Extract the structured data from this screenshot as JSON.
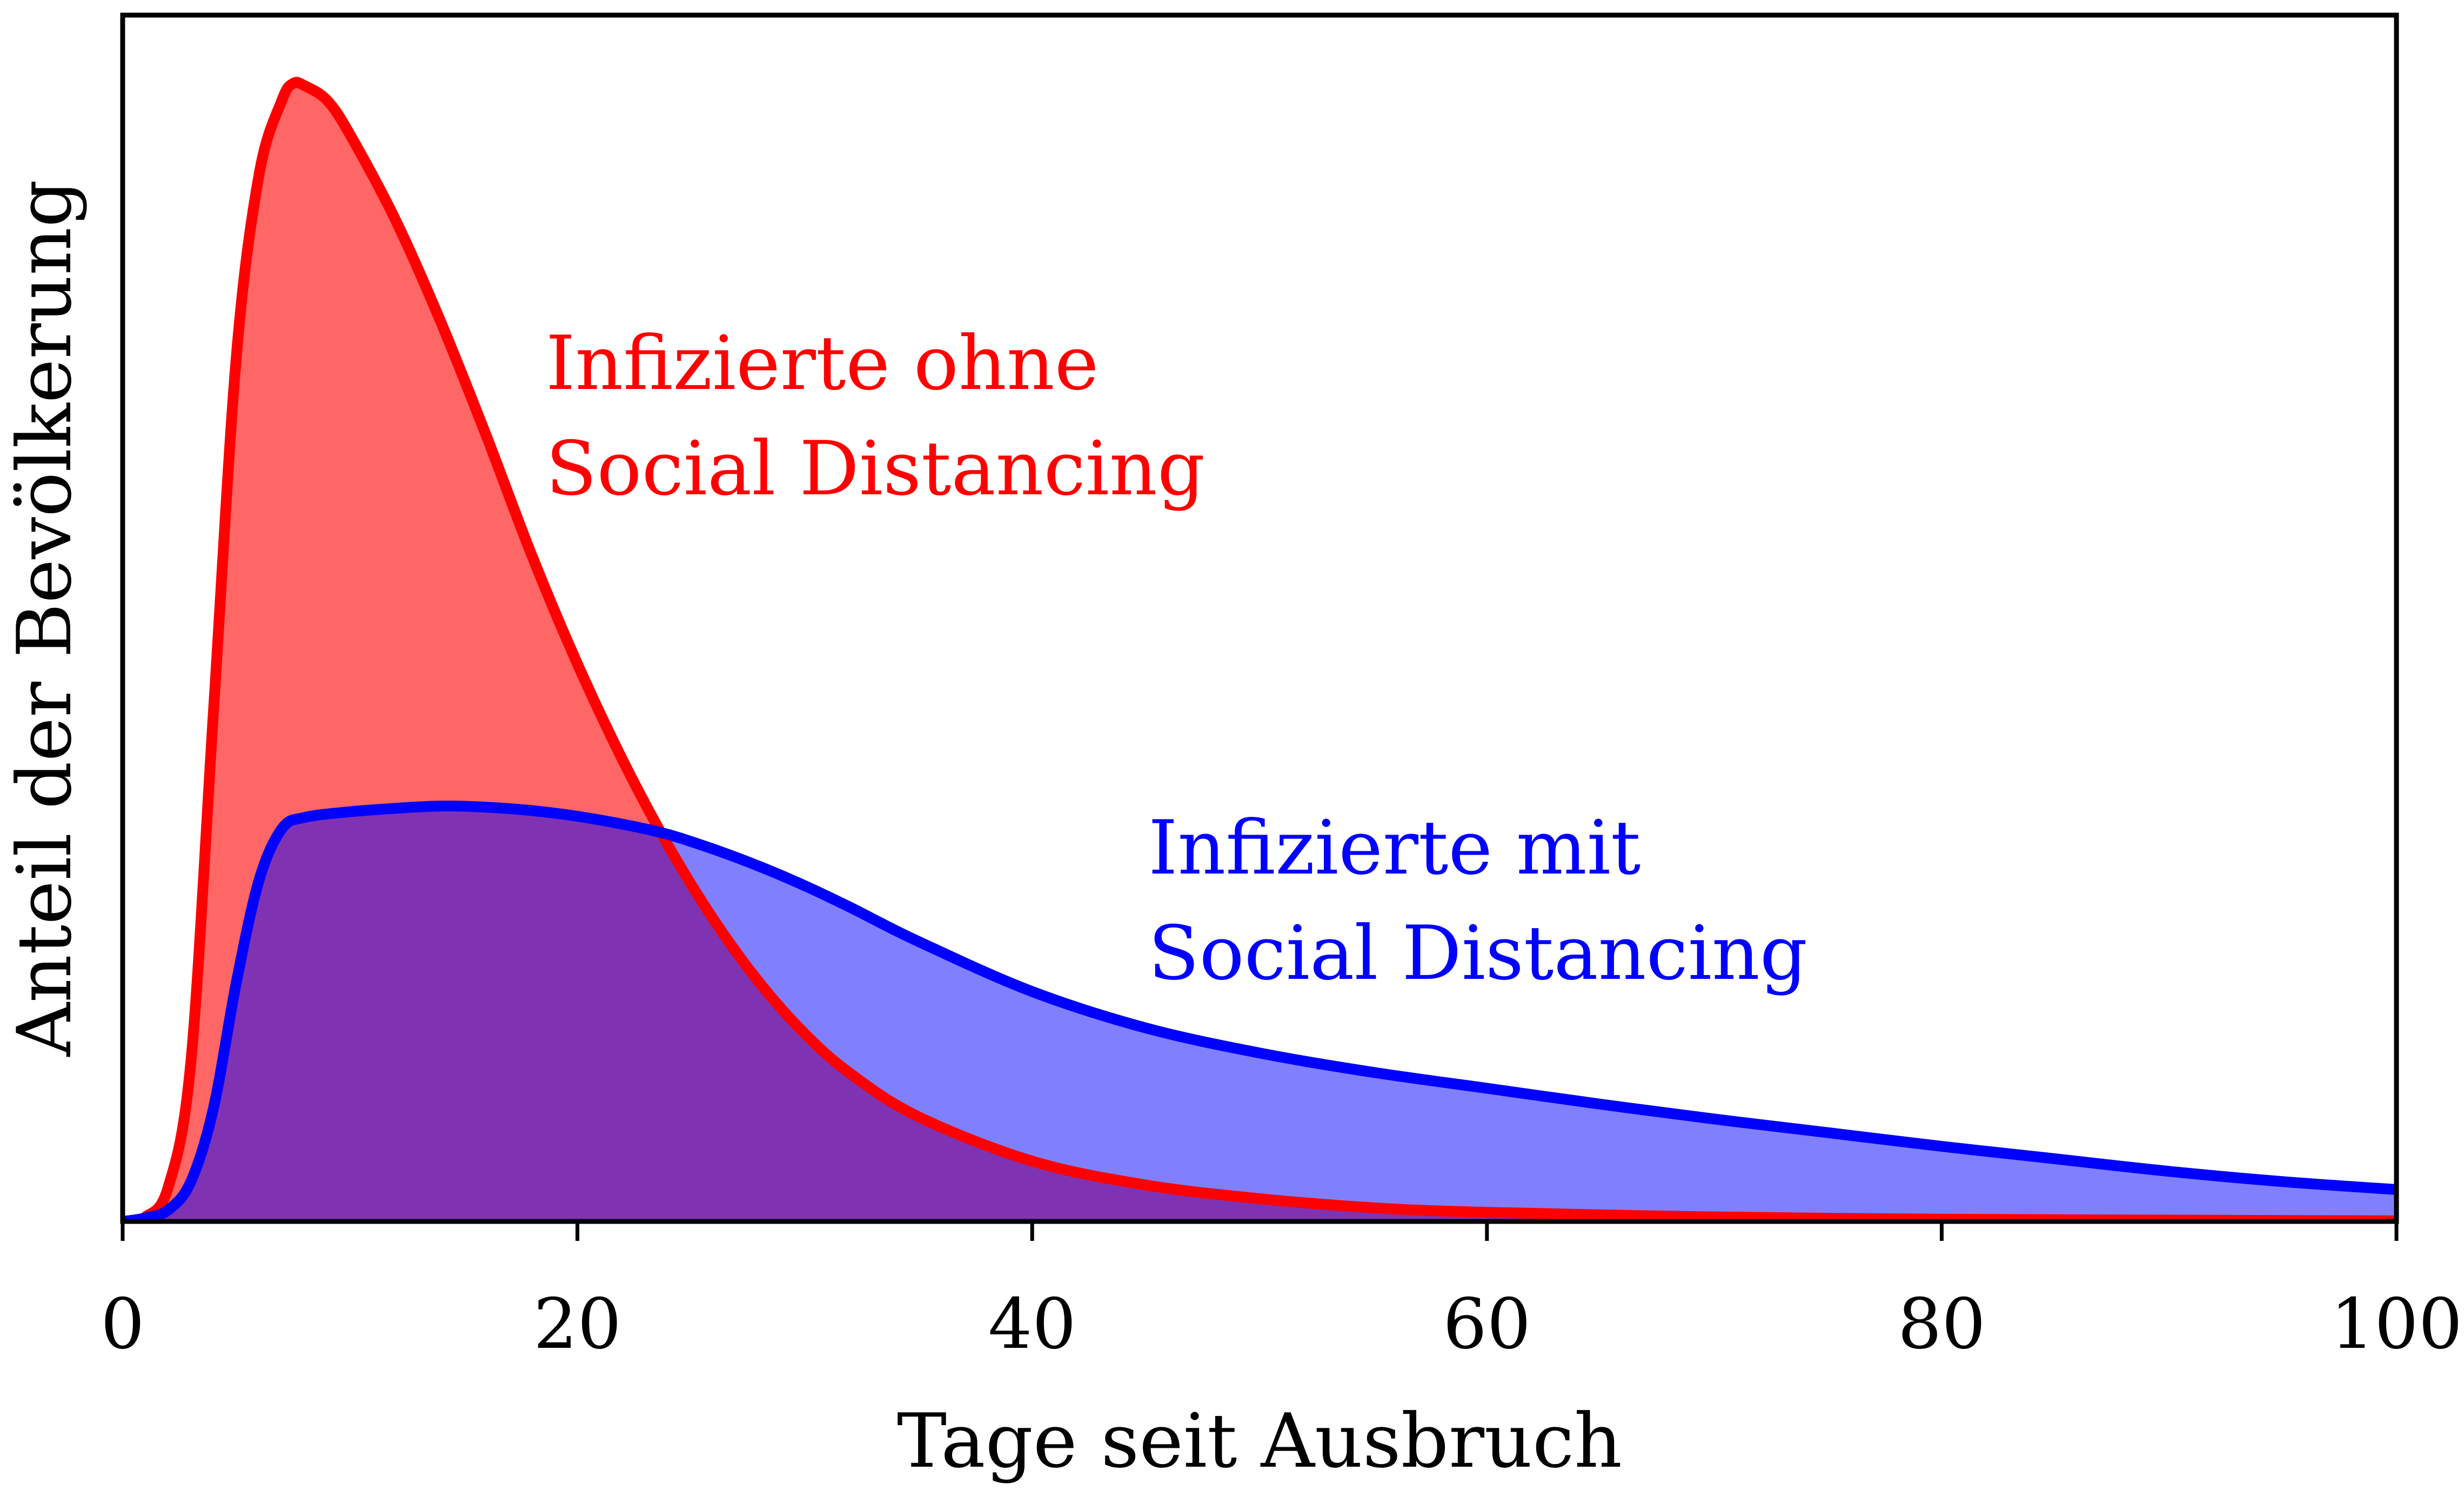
{
  "chart_data": {
    "type": "area",
    "xlabel": "Tage seit Ausbruch",
    "ylabel": "Anteil der Bevölkerung",
    "xlim": [
      0,
      100
    ],
    "ylim": [
      0,
      1.06
    ],
    "x_ticks": [
      0,
      20,
      40,
      60,
      80,
      100
    ],
    "y_ticks": [],
    "grid": false,
    "legend": "none",
    "series": [
      {
        "id": "without",
        "line_color": "#ff0000",
        "fill_color": "#ff6666",
        "points": [
          [
            0,
            0.0
          ],
          [
            1,
            0.004
          ],
          [
            2,
            0.03
          ],
          [
            3,
            0.14
          ],
          [
            4,
            0.45
          ],
          [
            5,
            0.76
          ],
          [
            6,
            0.92
          ],
          [
            7,
            0.985
          ],
          [
            7.5,
            1.0
          ],
          [
            8,
            0.998
          ],
          [
            9,
            0.985
          ],
          [
            10,
            0.955
          ],
          [
            12,
            0.88
          ],
          [
            14,
            0.79
          ],
          [
            16,
            0.69
          ],
          [
            18,
            0.585
          ],
          [
            20,
            0.49
          ],
          [
            22,
            0.405
          ],
          [
            24,
            0.33
          ],
          [
            26,
            0.265
          ],
          [
            28,
            0.21
          ],
          [
            30,
            0.165
          ],
          [
            32,
            0.13
          ],
          [
            35,
            0.092
          ],
          [
            40,
            0.053
          ],
          [
            45,
            0.032
          ],
          [
            50,
            0.02
          ],
          [
            55,
            0.012
          ],
          [
            60,
            0.008
          ],
          [
            70,
            0.004
          ],
          [
            80,
            0.002
          ],
          [
            90,
            0.0012
          ],
          [
            100,
            0.0005
          ]
        ]
      },
      {
        "id": "with",
        "line_color": "#0000ff",
        "fill_color": "#8080ff",
        "points": [
          [
            0,
            0.0
          ],
          [
            1,
            0.003
          ],
          [
            2,
            0.01
          ],
          [
            3,
            0.035
          ],
          [
            4,
            0.1
          ],
          [
            5,
            0.21
          ],
          [
            6,
            0.3
          ],
          [
            7,
            0.345
          ],
          [
            8,
            0.355
          ],
          [
            10,
            0.36
          ],
          [
            12,
            0.363
          ],
          [
            14,
            0.365
          ],
          [
            16,
            0.364
          ],
          [
            18,
            0.361
          ],
          [
            20,
            0.356
          ],
          [
            22,
            0.349
          ],
          [
            24,
            0.34
          ],
          [
            26,
            0.327
          ],
          [
            28,
            0.312
          ],
          [
            30,
            0.295
          ],
          [
            32,
            0.276
          ],
          [
            35,
            0.246
          ],
          [
            40,
            0.202
          ],
          [
            45,
            0.17
          ],
          [
            50,
            0.148
          ],
          [
            55,
            0.131
          ],
          [
            60,
            0.117
          ],
          [
            65,
            0.103
          ],
          [
            70,
            0.09
          ],
          [
            75,
            0.078
          ],
          [
            80,
            0.066
          ],
          [
            85,
            0.055
          ],
          [
            90,
            0.044
          ],
          [
            95,
            0.035
          ],
          [
            100,
            0.028
          ]
        ]
      }
    ],
    "overlap_fill_color": "#7f33b3",
    "annotations": [
      {
        "series": "without",
        "lines": [
          "Infizierte ohne",
          "Social Distancing"
        ],
        "color": "#ff0000"
      },
      {
        "series": "with",
        "lines": [
          "Infizierte mit",
          "Social Distancing"
        ],
        "color": "#0000ff"
      }
    ]
  }
}
